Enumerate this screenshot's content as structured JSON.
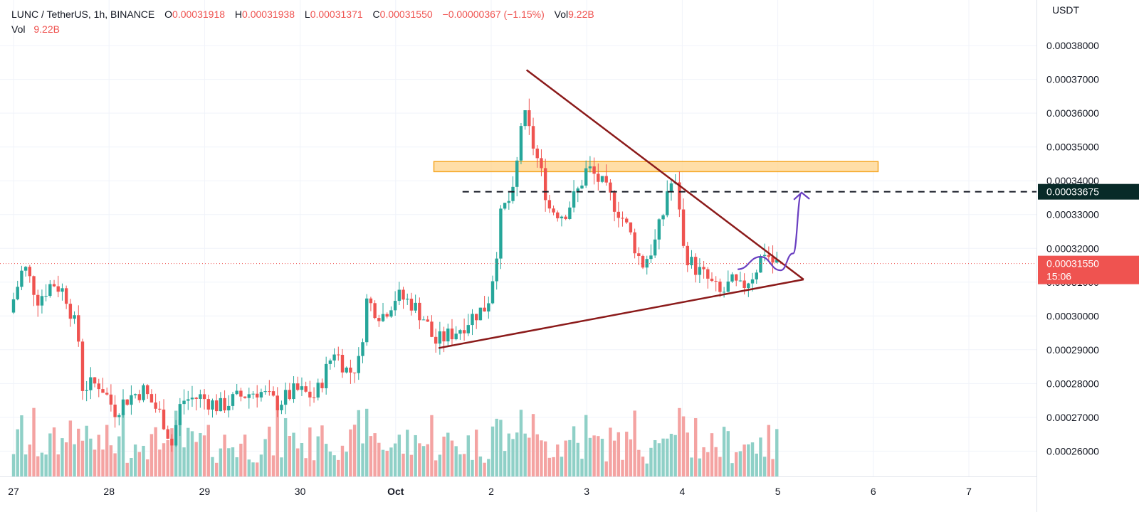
{
  "symbol": {
    "pair": "LUNC / TetherUS, 1h, BINANCE",
    "o_label": "O",
    "open": "0.00031918",
    "h_label": "H",
    "high": "0.00031938",
    "l_label": "L",
    "low": "0.00031371",
    "c_label": "C",
    "close": "0.00031550",
    "change": "−0.00000367 (−1.15%)",
    "vol_label": "Vol",
    "vol": "9.22B"
  },
  "volume_legend": {
    "label": "Vol",
    "value": "9.22B"
  },
  "colors": {
    "up": "#26a69a",
    "down": "#ef5350",
    "up_volume": "#8fd0c7",
    "down_volume": "#f4a3a2",
    "trendline": "#8b1a1a",
    "arrow": "#6a3fc1",
    "zone_fill": "#ffd38a",
    "zone_border": "#f5a623",
    "dashed": "#131722",
    "grid": "#f0f3fa"
  },
  "chart_data": {
    "type": "candlestick",
    "currency_label": "USDT",
    "y_ticks": [
      "0.00026000",
      "0.00027000",
      "0.00028000",
      "0.00029000",
      "0.00030000",
      "0.00031000",
      "0.00032000",
      "0.00033000",
      "0.00034000",
      "0.00035000",
      "0.00036000",
      "0.00037000",
      "0.00038000"
    ],
    "x_ticks": [
      {
        "label": "27",
        "day": 0
      },
      {
        "label": "28",
        "day": 1
      },
      {
        "label": "29",
        "day": 2
      },
      {
        "label": "30",
        "day": 3
      },
      {
        "label": "Oct",
        "day": 4
      },
      {
        "label": "2",
        "day": 5
      },
      {
        "label": "3",
        "day": 6
      },
      {
        "label": "4",
        "day": 7
      },
      {
        "label": "5",
        "day": 8
      },
      {
        "label": "6",
        "day": 9
      },
      {
        "label": "7",
        "day": 10
      }
    ],
    "ylim": [
      0.0002525,
      0.0003935
    ],
    "xlim": [
      0,
      11
    ],
    "last_price": {
      "value": 0.0003155,
      "label": "0.00031550",
      "countdown": "15:06"
    },
    "key_level": {
      "value": 0.00033675,
      "label": "0.00033675",
      "from_day": 4.7
    },
    "resistance_zone": {
      "low": 0.0003427,
      "high": 0.0003457,
      "from_day": 4.4,
      "to_day": 9.05
    },
    "trendlines": [
      {
        "name": "descending",
        "from": [
          5.37,
          0.0003728
        ],
        "to": [
          8.27,
          0.0003108
        ]
      },
      {
        "name": "ascending",
        "from": [
          4.45,
          0.0002905
        ],
        "to": [
          8.27,
          0.0003108
        ]
      }
    ],
    "projection": [
      [
        7.58,
        0.0003138
      ],
      [
        7.82,
        0.0003175
      ],
      [
        8.03,
        0.0003135
      ],
      [
        8.16,
        0.0003185
      ],
      [
        8.25,
        0.0003365
      ]
    ],
    "candle_keypoints": [
      [
        0.0,
        0.000301
      ],
      [
        0.15,
        0.000315
      ],
      [
        0.3,
        0.000305
      ],
      [
        0.45,
        0.00031
      ],
      [
        0.58,
        0.000307
      ],
      [
        0.72,
        0.000294
      ],
      [
        0.75,
        0.000279
      ],
      [
        0.95,
        0.00028
      ],
      [
        1.1,
        0.000272
      ],
      [
        1.25,
        0.000276
      ],
      [
        1.4,
        0.000278
      ],
      [
        1.6,
        0.00027
      ],
      [
        1.7,
        0.000262
      ],
      [
        1.8,
        0.000275
      ],
      [
        2.0,
        0.000276
      ],
      [
        2.2,
        0.000273
      ],
      [
        2.4,
        0.000276
      ],
      [
        2.6,
        0.000278
      ],
      [
        2.8,
        0.000274
      ],
      [
        3.0,
        0.000278
      ],
      [
        3.2,
        0.000276
      ],
      [
        3.4,
        0.00029
      ],
      [
        3.55,
        0.000283
      ],
      [
        3.68,
        0.000287
      ],
      [
        3.72,
        0.000305
      ],
      [
        3.9,
        0.0003
      ],
      [
        4.05,
        0.000306
      ],
      [
        4.2,
        0.000304
      ],
      [
        4.35,
        0.000299
      ],
      [
        4.45,
        0.000292
      ],
      [
        4.7,
        0.000296
      ],
      [
        4.85,
        0.0003
      ],
      [
        5.0,
        0.000303
      ],
      [
        5.08,
        0.000315
      ],
      [
        5.15,
        0.000331
      ],
      [
        5.28,
        0.000336
      ],
      [
        5.37,
        0.000361
      ],
      [
        5.55,
        0.000344
      ],
      [
        5.65,
        0.000332
      ],
      [
        5.8,
        0.00033
      ],
      [
        5.95,
        0.000337
      ],
      [
        6.05,
        0.000344
      ],
      [
        6.2,
        0.000339
      ],
      [
        6.4,
        0.00033
      ],
      [
        6.5,
        0.000324
      ],
      [
        6.62,
        0.000315
      ],
      [
        6.75,
        0.000321
      ],
      [
        6.85,
        0.000331
      ],
      [
        6.9,
        0.00034
      ],
      [
        7.0,
        0.000337
      ],
      [
        7.05,
        0.00032
      ],
      [
        7.15,
        0.000315
      ],
      [
        7.3,
        0.000311
      ],
      [
        7.45,
        0.000306
      ],
      [
        7.55,
        0.00031
      ],
      [
        7.65,
        0.000308
      ],
      [
        7.8,
        0.000313
      ],
      [
        7.9,
        0.0003195
      ],
      [
        8.0,
        0.0003155
      ]
    ]
  }
}
